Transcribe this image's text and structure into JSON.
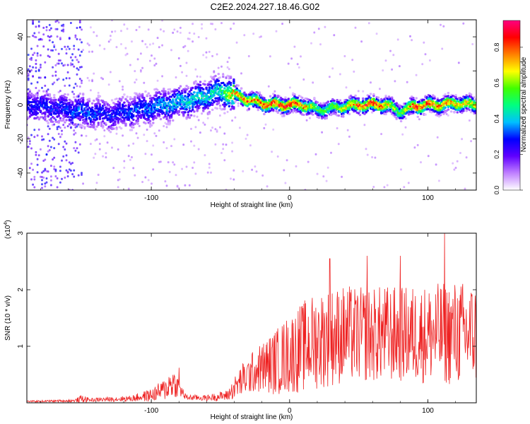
{
  "title": "C2E2.2024.227.18.46.G02",
  "chart_data": [
    {
      "type": "heatmap",
      "xlabel": "Height of straight line (km)",
      "ylabel": "Frequency (Hz)",
      "xlim": [
        -190,
        135
      ],
      "ylim": [
        -50,
        50
      ],
      "x_ticks": [
        -100,
        0,
        100
      ],
      "y_ticks": [
        -40,
        -20,
        0,
        20,
        40
      ],
      "colorbar": {
        "label": "Normalized spectral amplitude",
        "range": [
          0,
          0.95
        ],
        "ticks": [
          0.0,
          0.2,
          0.4,
          0.6,
          0.8
        ],
        "colors": [
          "#ffffff",
          "#c080ff",
          "#6000ff",
          "#0000ff",
          "#00c0ff",
          "#00ff80",
          "#40ff00",
          "#ffff00",
          "#ff8000",
          "#ff0000",
          "#ff0080"
        ]
      },
      "ridge": {
        "x": [
          -190,
          -170,
          -150,
          -130,
          -110,
          -90,
          -70,
          -50,
          -40,
          -30,
          -20,
          -10,
          0,
          10,
          20,
          30,
          40,
          50,
          60,
          70,
          80,
          90,
          100,
          110,
          120,
          135
        ],
        "frequency": [
          0,
          -2,
          -4,
          -6,
          -3,
          0,
          3,
          8,
          6,
          3,
          1,
          0,
          0,
          0,
          -3,
          -2,
          -1,
          0,
          0,
          0,
          -4,
          -1,
          0,
          0,
          1,
          0
        ],
        "amplitude": [
          0.3,
          0.3,
          0.35,
          0.3,
          0.35,
          0.4,
          0.45,
          0.45,
          0.75,
          0.8,
          0.85,
          0.85,
          0.9,
          0.8,
          0.55,
          0.6,
          0.7,
          0.85,
          0.9,
          0.75,
          0.55,
          0.85,
          0.85,
          0.8,
          0.75,
          0.7
        ]
      }
    },
    {
      "type": "line",
      "xlabel": "Height of straight line (km)",
      "ylabel": "SNR (10 * v/v)",
      "multiplier_label": "(x10",
      "multiplier_exp": "4",
      "xlim": [
        -190,
        135
      ],
      "ylim": [
        0,
        3
      ],
      "x_ticks": [
        -100,
        0,
        100
      ],
      "y_ticks": [
        1,
        2,
        3
      ],
      "color": "#ee2222",
      "envelope": {
        "x": [
          -190,
          -155,
          -150,
          -145,
          -115,
          -100,
          -90,
          -85,
          -80,
          -75,
          -60,
          -45,
          -35,
          -25,
          -10,
          0,
          10,
          20,
          30,
          40,
          50,
          60,
          70,
          80,
          90,
          100,
          110,
          120,
          135
        ],
        "baseline": [
          0.02,
          0.03,
          0.05,
          0.04,
          0.06,
          0.1,
          0.18,
          0.28,
          0.22,
          0.08,
          0.07,
          0.1,
          0.3,
          0.45,
          0.55,
          0.65,
          0.75,
          0.85,
          0.9,
          0.95,
          0.95,
          0.95,
          0.95,
          0.95,
          0.95,
          0.95,
          0.95,
          0.95,
          0.95
        ],
        "amplitude": [
          0.02,
          0.04,
          0.12,
          0.05,
          0.08,
          0.18,
          0.3,
          0.45,
          0.25,
          0.08,
          0.08,
          0.15,
          0.45,
          0.6,
          0.9,
          1.1,
          1.25,
          1.35,
          1.35,
          1.35,
          1.3,
          1.3,
          1.35,
          1.3,
          1.35,
          1.35,
          1.4,
          1.45,
          1.4
        ]
      },
      "peaks": [
        {
          "x": 112,
          "y": 3.0
        },
        {
          "x": 80,
          "y": 2.6
        },
        {
          "x": 56,
          "y": 2.6
        },
        {
          "x": 29,
          "y": 2.55
        },
        {
          "x": -80,
          "y": 0.62
        }
      ]
    }
  ]
}
